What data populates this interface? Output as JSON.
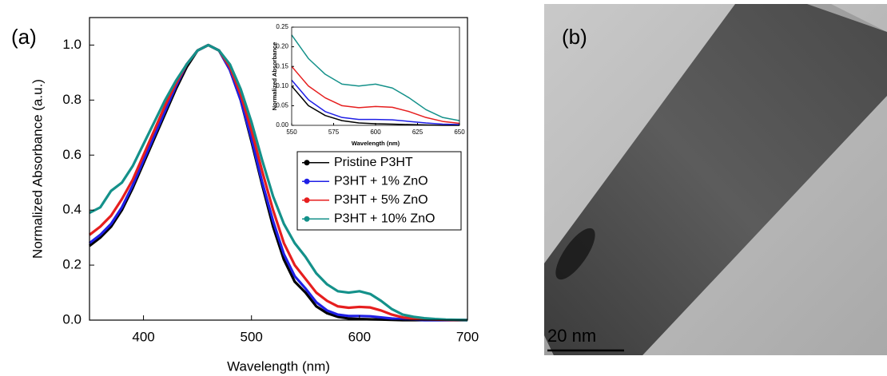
{
  "chart_data": [
    {
      "type": "line",
      "panel_label": "(a)",
      "xlabel": "Wavelength (nm)",
      "ylabel": "Normalized Absorbance (a.u.)",
      "xlim": [
        350,
        700
      ],
      "xticks": [
        400,
        500,
        600,
        700
      ],
      "ylim": [
        0,
        1.1
      ],
      "yticks": [
        {
          "value": 0,
          "label": "0.0"
        },
        0.2,
        0.4,
        0.6,
        0.8,
        {
          "value": 1,
          "label": "1.0"
        }
      ],
      "legend": "lower right",
      "x": [
        350,
        360,
        370,
        380,
        390,
        400,
        410,
        420,
        430,
        440,
        450,
        460,
        470,
        480,
        490,
        500,
        510,
        520,
        530,
        540,
        550,
        560,
        570,
        580,
        590,
        600,
        610,
        620,
        630,
        640,
        650,
        660,
        670,
        680,
        690,
        700
      ],
      "series": [
        {
          "name": "Pristine P3HT",
          "color": "#000000",
          "values": [
            0.27,
            0.3,
            0.34,
            0.4,
            0.48,
            0.57,
            0.66,
            0.75,
            0.84,
            0.92,
            0.98,
            1.0,
            0.98,
            0.91,
            0.8,
            0.65,
            0.49,
            0.34,
            0.22,
            0.14,
            0.1,
            0.05,
            0.025,
            0.012,
            0.006,
            0.004,
            0.003,
            0.002,
            0.001,
            0,
            0,
            0,
            0,
            0,
            0,
            0
          ]
        },
        {
          "name": "P3HT + 1% ZnO",
          "color": "#1f1fe6",
          "values": [
            0.28,
            0.31,
            0.35,
            0.41,
            0.49,
            0.58,
            0.67,
            0.76,
            0.85,
            0.93,
            0.98,
            1.0,
            0.98,
            0.91,
            0.8,
            0.66,
            0.5,
            0.36,
            0.24,
            0.16,
            0.115,
            0.065,
            0.035,
            0.02,
            0.015,
            0.015,
            0.014,
            0.01,
            0.006,
            0.003,
            0.002,
            0,
            0,
            0,
            0,
            0
          ]
        },
        {
          "name": "P3HT + 5% ZnO",
          "color": "#e61e1e",
          "values": [
            0.31,
            0.34,
            0.38,
            0.44,
            0.51,
            0.6,
            0.69,
            0.78,
            0.86,
            0.93,
            0.98,
            1.0,
            0.98,
            0.92,
            0.82,
            0.69,
            0.54,
            0.4,
            0.28,
            0.2,
            0.15,
            0.1,
            0.07,
            0.05,
            0.045,
            0.048,
            0.046,
            0.035,
            0.02,
            0.01,
            0.005,
            0.003,
            0.002,
            0.001,
            0,
            0
          ]
        },
        {
          "name": "P3HT + 10% ZnO",
          "color": "#14918a",
          "values": [
            0.39,
            0.41,
            0.47,
            0.5,
            0.56,
            0.64,
            0.72,
            0.8,
            0.87,
            0.93,
            0.98,
            1.0,
            0.98,
            0.93,
            0.84,
            0.72,
            0.58,
            0.45,
            0.35,
            0.28,
            0.23,
            0.17,
            0.13,
            0.105,
            0.1,
            0.105,
            0.095,
            0.07,
            0.04,
            0.02,
            0.012,
            0.007,
            0.004,
            0.002,
            0.001,
            0
          ]
        }
      ]
    },
    {
      "type": "line",
      "xlabel": "Wavelength (nm)",
      "ylabel": "Normalized Absorbance",
      "xlim": [
        550,
        650
      ],
      "xticks": [
        550,
        575,
        600,
        625,
        650
      ],
      "ylim": [
        0,
        0.25
      ],
      "yticks": [
        {
          "value": 0,
          "label": "0.00"
        },
        {
          "value": 0.05,
          "label": "0.05"
        },
        {
          "value": 0.1,
          "label": "0.10"
        },
        {
          "value": 0.15,
          "label": "0.15"
        },
        {
          "value": 0.2,
          "label": "0.20"
        },
        {
          "value": 0.25,
          "label": "0.25"
        }
      ],
      "x": [
        550,
        560,
        570,
        580,
        590,
        600,
        610,
        620,
        630,
        640,
        650
      ],
      "series": [
        {
          "color": "#000000",
          "values": [
            0.1,
            0.05,
            0.025,
            0.012,
            0.006,
            0.004,
            0.003,
            0.002,
            0.001,
            0,
            0
          ]
        },
        {
          "color": "#1f1fe6",
          "values": [
            0.115,
            0.065,
            0.035,
            0.02,
            0.015,
            0.015,
            0.014,
            0.01,
            0.006,
            0.003,
            0.002
          ]
        },
        {
          "color": "#e61e1e",
          "values": [
            0.15,
            0.1,
            0.07,
            0.05,
            0.045,
            0.048,
            0.046,
            0.035,
            0.02,
            0.01,
            0.005
          ]
        },
        {
          "color": "#14918a",
          "values": [
            0.23,
            0.17,
            0.13,
            0.105,
            0.1,
            0.105,
            0.095,
            0.07,
            0.04,
            0.02,
            0.012
          ]
        }
      ]
    }
  ],
  "image_panel": {
    "label": "(b)",
    "scale_bar": "20 nm"
  }
}
